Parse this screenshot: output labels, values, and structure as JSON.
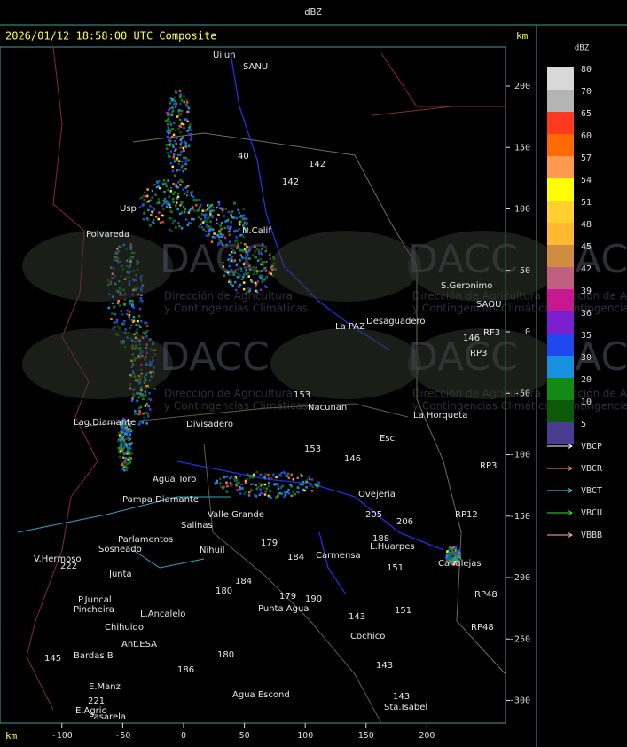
{
  "header": {
    "title": "dBZ"
  },
  "map": {
    "title": "2026/01/12 18:58:00 UTC Composite",
    "unit_y": "km",
    "unit_x": "km",
    "xticks": [
      -100,
      -50,
      0,
      50,
      100,
      150,
      200
    ],
    "yticks": [
      200,
      150,
      100,
      50,
      0,
      -50,
      -100,
      -150,
      -200,
      -250,
      -300
    ],
    "watermark": {
      "logo": "DACC",
      "line1": "Dirección de Agricultura",
      "line2": "y Contingencias Climáticas"
    },
    "places": [
      "Uilun",
      "SANU",
      "40",
      "142",
      "142",
      "Usp",
      "Polvareda",
      "N.Calif",
      "S.Geronimo",
      "SAOU",
      "Desaguadero",
      "La PAZ",
      "RF3",
      "146",
      "RP3",
      "Nacunan",
      "153",
      "La Horqueta",
      "Divisadero",
      "Lag.Diamante",
      "Esc.",
      "146",
      "153",
      "RP3",
      "Agua Toro",
      "Pampa Diamante",
      "Ovejeria",
      "205",
      "206",
      "RP12",
      "Valle Grande",
      "Salinas",
      "Parlamentos",
      "Sosneado",
      "188",
      "L.Huarpes",
      "Canalejas",
      "V.Hermoso",
      "222",
      "Nihuil",
      "179",
      "184",
      "Carmensa",
      "151",
      "Junta",
      "180",
      "184",
      "P.Juncal",
      "Pincheira",
      "L.Ancalelo",
      "Punta Agua",
      "179",
      "190",
      "151",
      "RP48",
      "Chihuido",
      "143",
      "RP48",
      "Cochico",
      "Ant.ESA",
      "Bardas B",
      "145",
      "180",
      "186",
      "143",
      "E.Manz",
      "221",
      "Agua Escond",
      "E.Agrio",
      "Sta.Isabel",
      "143",
      "Pasarela"
    ]
  },
  "legend": {
    "title": "dBZ",
    "levels": [
      {
        "label": "80",
        "color": "#d8d8d8"
      },
      {
        "label": "70",
        "color": "#b4b4b4"
      },
      {
        "label": "65",
        "color": "#ff3a20"
      },
      {
        "label": "60",
        "color": "#ff6a00"
      },
      {
        "label": "57",
        "color": "#ff9a50"
      },
      {
        "label": "54",
        "color": "#ffff00"
      },
      {
        "label": "51",
        "color": "#ffd030"
      },
      {
        "label": "48",
        "color": "#ffb830"
      },
      {
        "label": "45",
        "color": "#d08c40"
      },
      {
        "label": "42",
        "color": "#c06080"
      },
      {
        "label": "39",
        "color": "#c81890"
      },
      {
        "label": "36",
        "color": "#7a20d0"
      },
      {
        "label": "35",
        "color": "#2048f0"
      },
      {
        "label": "30",
        "color": "#1890e0"
      },
      {
        "label": "20",
        "color": "#138a13"
      },
      {
        "label": "10",
        "color": "#0a5a0a"
      },
      {
        "label": "5",
        "color": "#4a3c90"
      }
    ],
    "radars": [
      {
        "label": "VBCP",
        "color": "#ffffff"
      },
      {
        "label": "VBCR",
        "color": "#ff9a40"
      },
      {
        "label": "VBCT",
        "color": "#40d8ff"
      },
      {
        "label": "VBCU",
        "color": "#30e030"
      },
      {
        "label": "VBBB",
        "color": "#ffb0c0"
      }
    ]
  }
}
